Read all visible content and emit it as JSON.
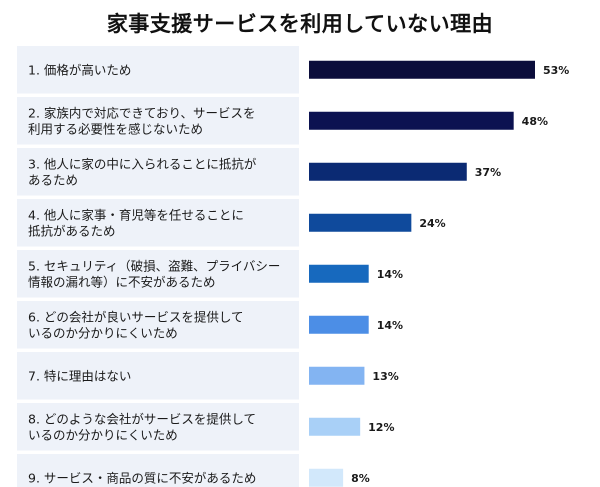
{
  "chart_data": {
    "type": "bar",
    "orientation": "horizontal",
    "title": "家事支援サービスを利用していない理由",
    "value_suffix": "%",
    "xlim": [
      0,
      53
    ],
    "categories": [
      [
        "1. 価格が高いため"
      ],
      [
        "2. 家族内で対応できており、サービスを",
        "利用する必要性を感じないため"
      ],
      [
        "3. 他人に家の中に入られることに抵抗が",
        "あるため"
      ],
      [
        "4. 他人に家事・育児等を任せることに",
        "抵抗があるため"
      ],
      [
        "5. セキュリティ（破損、盗難、プライバシー",
        "情報の漏れ等）に不安があるため"
      ],
      [
        "6. どの会社が良いサービスを提供して",
        "いるのか分かりにくいため"
      ],
      [
        "7. 特に理由はない"
      ],
      [
        "8. どのような会社がサービスを提供して",
        "いるのか分かりにくいため"
      ],
      [
        "9. サービス・商品の質に不安があるため"
      ]
    ],
    "values": [
      53,
      48,
      37,
      24,
      14,
      14,
      13,
      12,
      8
    ],
    "colors": [
      "#0b0d3b",
      "#0c1251",
      "#0b2a73",
      "#0f4a9c",
      "#1769be",
      "#4c8ee6",
      "#83b4f2",
      "#a9d0f7",
      "#d2e8fb"
    ],
    "label_background": "#eef2f9"
  }
}
